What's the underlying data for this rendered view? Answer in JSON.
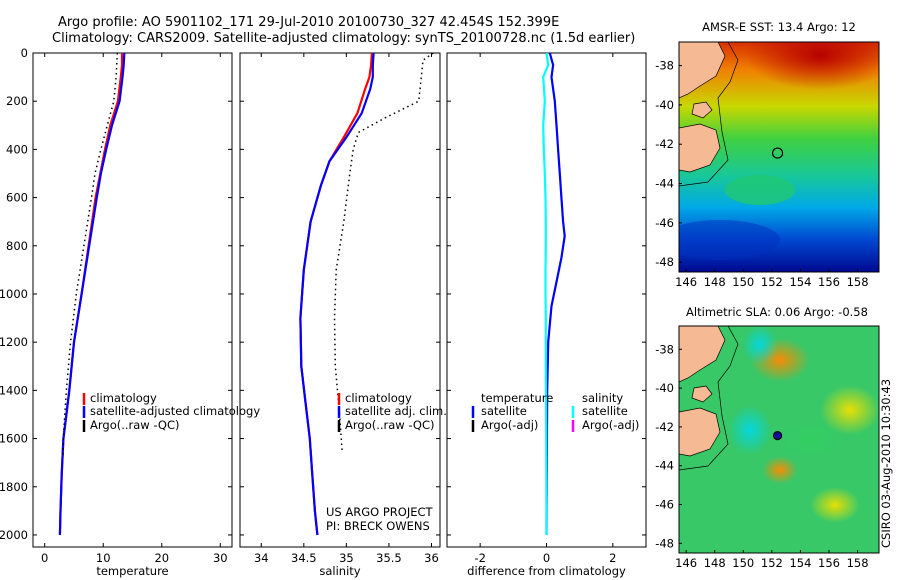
{
  "header": {
    "line1": "Argo profile: AO 5901102_171 29-Jul-2010 20100730_327 42.454S 152.399E",
    "line2": "Climatology: CARS2009. Satellite-adjusted climatology: synTS_20100728.nc (1.5d earlier)"
  },
  "credit": {
    "project": "US ARGO PROJECT",
    "pi": "PI: BRECK OWENS"
  },
  "side_label": "CSIRO 03-Aug-2010 10:30:43",
  "colors": {
    "climatology": "#ff0000",
    "satellite": "#0000ff",
    "argo": "#000000",
    "sal_satellite": "#00ffff",
    "sal_argo": "#ff00ff",
    "land": "#f5b994"
  },
  "chart_data": [
    {
      "id": "temperature",
      "type": "line",
      "xlabel": "temperature",
      "ylabel": "",
      "xlim": [
        -2,
        32
      ],
      "ylim": [
        2050,
        0
      ],
      "xticks": [
        0,
        10,
        20,
        30
      ],
      "yticks": [
        0,
        200,
        400,
        600,
        800,
        1000,
        1200,
        1400,
        1600,
        1800,
        2000
      ],
      "legend": {
        "position": "lower-middle",
        "entries": [
          "climatology",
          "satellite-adjusted climatology",
          "Argo(..raw -QC)"
        ]
      },
      "series": [
        {
          "name": "climatology",
          "color": "#ff0000",
          "style": "solid",
          "x": [
            13.2,
            13.2,
            13.0,
            12.5,
            11.2,
            10.3,
            9.5,
            8.7,
            7.5,
            6.3,
            5.0,
            4.2,
            3.7,
            3.2,
            2.9,
            2.7,
            2.6
          ],
          "y": [
            0,
            50,
            100,
            200,
            300,
            400,
            500,
            600,
            800,
            1000,
            1200,
            1400,
            1500,
            1600,
            1750,
            1900,
            2000
          ]
        },
        {
          "name": "satellite-adjusted climatology",
          "color": "#0000ff",
          "style": "solid",
          "x": [
            13.6,
            13.5,
            13.3,
            12.8,
            11.5,
            10.5,
            9.6,
            8.9,
            7.6,
            6.3,
            5.0,
            4.2,
            3.7,
            3.2,
            2.9,
            2.7,
            2.6
          ],
          "y": [
            0,
            50,
            100,
            200,
            300,
            400,
            500,
            600,
            800,
            1000,
            1200,
            1400,
            1500,
            1600,
            1750,
            1900,
            2000
          ]
        },
        {
          "name": "Argo(..raw -QC)",
          "color": "#000000",
          "style": "dotted",
          "x": [
            12.4,
            12.3,
            12.2,
            11.8,
            10.7,
            9.6,
            8.6,
            8.0,
            6.7,
            5.4,
            4.4,
            3.7,
            3.3,
            3.1
          ],
          "y": [
            0,
            50,
            100,
            200,
            300,
            400,
            500,
            600,
            800,
            1000,
            1200,
            1400,
            1550,
            1680
          ]
        }
      ]
    },
    {
      "id": "salinity",
      "type": "line",
      "xlabel": "salinity",
      "ylabel": "",
      "xlim": [
        33.75,
        36.1
      ],
      "ylim": [
        2050,
        0
      ],
      "xticks": [
        34,
        34.5,
        35,
        35.5,
        36
      ],
      "xticklabels": [
        "34",
        "34.5",
        "35",
        "35.5",
        "36"
      ],
      "legend": {
        "position": "lower-right",
        "entries": [
          "climatology",
          "satellite adj. clim.",
          "Argo(..raw -QC)"
        ]
      },
      "series": [
        {
          "name": "climatology",
          "color": "#ff0000",
          "style": "solid",
          "x": [
            35.3,
            35.29,
            35.27,
            35.22,
            35.13,
            34.97,
            34.8,
            34.7,
            34.58,
            34.5,
            34.46,
            34.47,
            34.52,
            34.57,
            34.6,
            34.63,
            34.66
          ],
          "y": [
            0,
            50,
            100,
            150,
            250,
            350,
            450,
            550,
            700,
            900,
            1100,
            1300,
            1450,
            1600,
            1750,
            1900,
            2000
          ]
        },
        {
          "name": "satellite adj. clim.",
          "color": "#0000ff",
          "style": "solid",
          "x": [
            35.32,
            35.31,
            35.31,
            35.28,
            35.18,
            35.0,
            34.8,
            34.7,
            34.58,
            34.5,
            34.46,
            34.47,
            34.52,
            34.57,
            34.6,
            34.63,
            34.66
          ],
          "y": [
            0,
            50,
            100,
            150,
            250,
            350,
            450,
            550,
            700,
            900,
            1100,
            1300,
            1450,
            1600,
            1750,
            1900,
            2000
          ]
        },
        {
          "name": "Argo(..raw -QC)",
          "color": "#000000",
          "style": "dotted",
          "x": [
            36.02,
            35.9,
            35.88,
            35.85,
            35.45,
            35.14,
            35.08,
            35.04,
            34.97,
            34.88,
            34.86,
            34.87,
            34.92,
            34.95
          ],
          "y": [
            0,
            30,
            100,
            200,
            270,
            330,
            400,
            500,
            700,
            900,
            1100,
            1300,
            1500,
            1650
          ]
        }
      ]
    },
    {
      "id": "difference",
      "type": "line",
      "xlabel": "difference from climatology",
      "ylabel": "",
      "xlim": [
        -3,
        3
      ],
      "ylim": [
        2050,
        0
      ],
      "xticks": [
        -2,
        0,
        2
      ],
      "legend": {
        "position": "lower-middle",
        "groups": [
          {
            "title": "temperature",
            "entries": [
              "satellite",
              "Argo(-adj)"
            ]
          },
          {
            "title": "salinity",
            "entries": [
              "satellite",
              "Argo(-adj)"
            ]
          }
        ]
      },
      "series": [
        {
          "name": "temperature satellite",
          "color": "#0000ff",
          "style": "solid",
          "x": [
            0.1,
            0.2,
            0.15,
            0.25,
            0.3,
            0.35,
            0.4,
            0.45,
            0.5,
            0.55,
            0.45,
            0.3,
            0.15,
            0.05,
            0.02,
            0.01,
            0.0
          ],
          "y": [
            0,
            50,
            100,
            200,
            300,
            400,
            500,
            600,
            700,
            760,
            850,
            950,
            1050,
            1200,
            1400,
            1700,
            2000
          ]
        },
        {
          "name": "salinity satellite",
          "color": "#00ffff",
          "style": "solid",
          "x": [
            0.0,
            0.05,
            -0.1,
            -0.05,
            -0.1,
            -0.08,
            -0.05,
            -0.03,
            -0.02,
            -0.02,
            -0.03,
            -0.03,
            -0.02,
            -0.02,
            -0.01,
            0.0
          ],
          "y": [
            0,
            50,
            100,
            200,
            300,
            400,
            500,
            600,
            700,
            800,
            900,
            1000,
            1100,
            1300,
            1600,
            2000
          ]
        }
      ]
    },
    {
      "id": "sst_map",
      "type": "heatmap",
      "title": "AMSR-E SST: 13.4 Argo: 12",
      "xlim": [
        145.5,
        159.5
      ],
      "ylim": [
        -48.5,
        -36.8
      ],
      "xticks": [
        146,
        148,
        150,
        152,
        154,
        156,
        158
      ],
      "yticks": [
        -38,
        -40,
        -42,
        -44,
        -46,
        -48
      ],
      "marker": {
        "lon": 152.4,
        "lat": -42.45,
        "style": "open-circle"
      }
    },
    {
      "id": "sla_map",
      "type": "heatmap",
      "title": "Altimetric SLA: 0.06 Argo: -0.58",
      "xlim": [
        145.5,
        159.5
      ],
      "ylim": [
        -48.5,
        -36.8
      ],
      "xticks": [
        146,
        148,
        150,
        152,
        154,
        156,
        158
      ],
      "yticks": [
        -38,
        -40,
        -42,
        -44,
        -46,
        -48
      ],
      "marker": {
        "lon": 152.4,
        "lat": -42.45,
        "style": "filled-circle"
      }
    }
  ]
}
